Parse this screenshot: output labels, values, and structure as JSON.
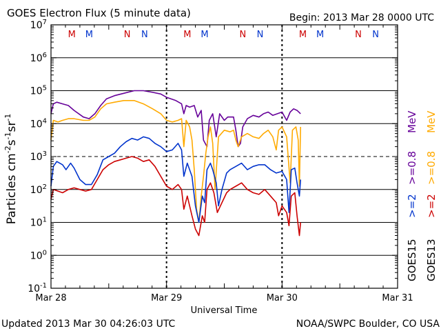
{
  "chart_data": {
    "type": "line",
    "title": "GOES Electron Flux (5 minute data)",
    "begin_label": "Begin: 2013 Mar 28 0000 UTC",
    "xlabel": "Universal Time",
    "ylabel_parts": [
      "Particles cm",
      "-2",
      "s",
      "-1",
      "sr",
      "-1"
    ],
    "updated_label": "Updated 2013 Mar 30 04:26:03 UTC",
    "credit_label": "NOAA/SWPC Boulder, CO USA",
    "x_unit": "day since Mar 28 0000 UTC",
    "xlim": [
      0,
      3
    ],
    "x_ticks": [
      {
        "value": 0,
        "label": "Mar 28"
      },
      {
        "value": 1,
        "label": "Mar 29"
      },
      {
        "value": 2,
        "label": "Mar 30"
      },
      {
        "value": 3,
        "label": "Mar 31"
      }
    ],
    "y_scale": "log",
    "ylim_exp": [
      -1,
      7
    ],
    "y_tick_labels": [
      {
        "exp": 7,
        "base": "10",
        "sup": "7"
      },
      {
        "exp": 6,
        "base": "10",
        "sup": "6"
      },
      {
        "exp": 5,
        "base": "10",
        "sup": "5"
      },
      {
        "exp": 4,
        "base": "10",
        "sup": "4"
      },
      {
        "exp": 3,
        "base": "10",
        "sup": "3"
      },
      {
        "exp": 2,
        "base": "10",
        "sup": "2"
      },
      {
        "exp": 1,
        "base": "10",
        "sup": "1"
      },
      {
        "exp": 0,
        "base": "10",
        "sup": "0"
      },
      {
        "exp": -1,
        "base": "10",
        "sup": "-1"
      }
    ],
    "solid_grid_exps": [
      6,
      5,
      4,
      2,
      1,
      0
    ],
    "dashed_grid_exps": [
      3
    ],
    "day_dashed_lines": [
      1,
      2
    ],
    "mn_markers": [
      {
        "x": 0.18,
        "label": "M",
        "color": "#cc0000"
      },
      {
        "x": 0.33,
        "label": "M",
        "color": "#0033cc"
      },
      {
        "x": 0.66,
        "label": "N",
        "color": "#cc0000"
      },
      {
        "x": 0.81,
        "label": "N",
        "color": "#0033cc"
      },
      {
        "x": 1.18,
        "label": "M",
        "color": "#cc0000"
      },
      {
        "x": 1.33,
        "label": "M",
        "color": "#0033cc"
      },
      {
        "x": 1.66,
        "label": "N",
        "color": "#cc0000"
      },
      {
        "x": 1.81,
        "label": "N",
        "color": "#0033cc"
      },
      {
        "x": 2.18,
        "label": "M",
        "color": "#cc0000"
      },
      {
        "x": 2.33,
        "label": "M",
        "color": "#0033cc"
      },
      {
        "x": 2.66,
        "label": "N",
        "color": "#cc0000"
      },
      {
        "x": 2.81,
        "label": "N",
        "color": "#0033cc"
      }
    ],
    "legend": [
      {
        "text": "GOES15",
        "color": "#000000"
      },
      {
        "text": ">=2",
        "color": "#0033cc"
      },
      {
        "text": ">=0.8",
        "color": "#660099"
      },
      {
        "text": "MeV",
        "color": "#660099"
      },
      {
        "text": "GOES13",
        "color": "#000000"
      },
      {
        "text": ">=2",
        "color": "#cc0000"
      },
      {
        "text": ">=0.8",
        "color": "#ffaa00"
      },
      {
        "text": "MeV",
        "color": "#ffaa00"
      }
    ],
    "series": [
      {
        "name": "GOES15 >=0.8 MeV",
        "color": "#660099",
        "points": [
          [
            0,
            4.3
          ],
          [
            0.02,
            4.6
          ],
          [
            0.05,
            4.65
          ],
          [
            0.1,
            4.6
          ],
          [
            0.15,
            4.55
          ],
          [
            0.2,
            4.4
          ],
          [
            0.28,
            4.2
          ],
          [
            0.33,
            4.15
          ],
          [
            0.38,
            4.3
          ],
          [
            0.43,
            4.55
          ],
          [
            0.48,
            4.75
          ],
          [
            0.55,
            4.85
          ],
          [
            0.63,
            4.92
          ],
          [
            0.72,
            5.0
          ],
          [
            0.8,
            5.0
          ],
          [
            0.88,
            4.95
          ],
          [
            0.95,
            4.9
          ],
          [
            1.0,
            4.8
          ],
          [
            1.08,
            4.7
          ],
          [
            1.13,
            4.6
          ],
          [
            1.15,
            4.3
          ],
          [
            1.17,
            4.55
          ],
          [
            1.2,
            4.5
          ],
          [
            1.24,
            4.55
          ],
          [
            1.27,
            4.2
          ],
          [
            1.3,
            4.4
          ],
          [
            1.32,
            3.5
          ],
          [
            1.35,
            3.3
          ],
          [
            1.37,
            4.1
          ],
          [
            1.4,
            4.3
          ],
          [
            1.43,
            3.6
          ],
          [
            1.46,
            4.3
          ],
          [
            1.5,
            4.1
          ],
          [
            1.53,
            4.2
          ],
          [
            1.58,
            4.2
          ],
          [
            1.6,
            3.8
          ],
          [
            1.62,
            3.3
          ],
          [
            1.64,
            3.4
          ],
          [
            1.66,
            3.9
          ],
          [
            1.7,
            4.15
          ],
          [
            1.75,
            4.25
          ],
          [
            1.8,
            4.2
          ],
          [
            1.84,
            4.3
          ],
          [
            1.88,
            4.35
          ],
          [
            1.92,
            4.25
          ],
          [
            1.96,
            4.3
          ],
          [
            2.0,
            4.35
          ],
          [
            2.04,
            4.1
          ],
          [
            2.07,
            4.35
          ],
          [
            2.1,
            4.45
          ],
          [
            2.13,
            4.4
          ],
          [
            2.16,
            4.3
          ]
        ]
      },
      {
        "name": "GOES13 >=0.8 MeV",
        "color": "#ffaa00",
        "points": [
          [
            0,
            3.5
          ],
          [
            0.02,
            4.1
          ],
          [
            0.06,
            4.05
          ],
          [
            0.1,
            4.1
          ],
          [
            0.15,
            4.15
          ],
          [
            0.2,
            4.15
          ],
          [
            0.28,
            4.1
          ],
          [
            0.33,
            4.1
          ],
          [
            0.38,
            4.2
          ],
          [
            0.43,
            4.45
          ],
          [
            0.48,
            4.6
          ],
          [
            0.55,
            4.65
          ],
          [
            0.63,
            4.7
          ],
          [
            0.72,
            4.7
          ],
          [
            0.8,
            4.6
          ],
          [
            0.88,
            4.45
          ],
          [
            0.95,
            4.3
          ],
          [
            1.0,
            4.1
          ],
          [
            1.05,
            4.05
          ],
          [
            1.1,
            4.1
          ],
          [
            1.13,
            4.15
          ],
          [
            1.15,
            3.3
          ],
          [
            1.17,
            4.1
          ],
          [
            1.2,
            3.9
          ],
          [
            1.22,
            3.5
          ],
          [
            1.24,
            2.6
          ],
          [
            1.26,
            1.4
          ],
          [
            1.28,
            1.0
          ],
          [
            1.3,
            1.8
          ],
          [
            1.32,
            2.4
          ],
          [
            1.34,
            3.1
          ],
          [
            1.36,
            3.6
          ],
          [
            1.38,
            3.9
          ],
          [
            1.4,
            3.4
          ],
          [
            1.42,
            2.0
          ],
          [
            1.45,
            3.6
          ],
          [
            1.5,
            3.8
          ],
          [
            1.55,
            3.75
          ],
          [
            1.58,
            3.8
          ],
          [
            1.6,
            3.5
          ],
          [
            1.62,
            3.3
          ],
          [
            1.65,
            3.6
          ],
          [
            1.7,
            3.7
          ],
          [
            1.75,
            3.6
          ],
          [
            1.8,
            3.55
          ],
          [
            1.84,
            3.7
          ],
          [
            1.88,
            3.8
          ],
          [
            1.92,
            3.6
          ],
          [
            1.95,
            3.2
          ],
          [
            1.97,
            3.8
          ],
          [
            2.0,
            3.9
          ],
          [
            2.04,
            3.6
          ],
          [
            2.07,
            2.2
          ],
          [
            2.09,
            3.8
          ],
          [
            2.12,
            3.9
          ],
          [
            2.14,
            3.5
          ],
          [
            2.15,
            2.1
          ],
          [
            2.16,
            3.9
          ]
        ]
      },
      {
        "name": "GOES15 >=2 MeV",
        "color": "#0033cc",
        "points": [
          [
            0,
            2.1
          ],
          [
            0.02,
            2.7
          ],
          [
            0.05,
            2.85
          ],
          [
            0.1,
            2.75
          ],
          [
            0.13,
            2.6
          ],
          [
            0.17,
            2.8
          ],
          [
            0.2,
            2.65
          ],
          [
            0.25,
            2.3
          ],
          [
            0.3,
            2.15
          ],
          [
            0.35,
            2.15
          ],
          [
            0.4,
            2.45
          ],
          [
            0.45,
            2.9
          ],
          [
            0.5,
            3.0
          ],
          [
            0.55,
            3.1
          ],
          [
            0.6,
            3.3
          ],
          [
            0.65,
            3.45
          ],
          [
            0.7,
            3.55
          ],
          [
            0.75,
            3.5
          ],
          [
            0.8,
            3.6
          ],
          [
            0.85,
            3.55
          ],
          [
            0.9,
            3.4
          ],
          [
            0.95,
            3.3
          ],
          [
            1.0,
            3.15
          ],
          [
            1.05,
            3.2
          ],
          [
            1.1,
            3.4
          ],
          [
            1.13,
            3.2
          ],
          [
            1.15,
            2.4
          ],
          [
            1.18,
            2.8
          ],
          [
            1.22,
            2.4
          ],
          [
            1.25,
            1.5
          ],
          [
            1.28,
            1.0
          ],
          [
            1.31,
            1.8
          ],
          [
            1.33,
            1.6
          ],
          [
            1.35,
            2.6
          ],
          [
            1.38,
            2.8
          ],
          [
            1.4,
            2.6
          ],
          [
            1.43,
            2.2
          ],
          [
            1.45,
            1.5
          ],
          [
            1.48,
            2.0
          ],
          [
            1.52,
            2.5
          ],
          [
            1.55,
            2.6
          ],
          [
            1.6,
            2.7
          ],
          [
            1.65,
            2.8
          ],
          [
            1.7,
            2.6
          ],
          [
            1.75,
            2.7
          ],
          [
            1.8,
            2.75
          ],
          [
            1.85,
            2.75
          ],
          [
            1.9,
            2.6
          ],
          [
            1.95,
            2.5
          ],
          [
            2.0,
            2.55
          ],
          [
            2.04,
            2.3
          ],
          [
            2.06,
            1.3
          ],
          [
            2.08,
            2.6
          ],
          [
            2.11,
            2.65
          ],
          [
            2.13,
            2.2
          ],
          [
            2.15,
            1.8
          ],
          [
            2.16,
            2.3
          ]
        ]
      },
      {
        "name": "GOES13 >=2 MeV",
        "color": "#cc0000",
        "points": [
          [
            0,
            1.7
          ],
          [
            0.02,
            2.0
          ],
          [
            0.06,
            1.95
          ],
          [
            0.1,
            1.9
          ],
          [
            0.15,
            2.0
          ],
          [
            0.2,
            2.05
          ],
          [
            0.25,
            2.0
          ],
          [
            0.3,
            1.95
          ],
          [
            0.35,
            2.0
          ],
          [
            0.4,
            2.3
          ],
          [
            0.45,
            2.6
          ],
          [
            0.5,
            2.75
          ],
          [
            0.55,
            2.85
          ],
          [
            0.6,
            2.9
          ],
          [
            0.65,
            2.95
          ],
          [
            0.7,
            3.0
          ],
          [
            0.75,
            2.95
          ],
          [
            0.8,
            2.85
          ],
          [
            0.85,
            2.9
          ],
          [
            0.9,
            2.7
          ],
          [
            0.95,
            2.4
          ],
          [
            1.0,
            2.1
          ],
          [
            1.05,
            2.0
          ],
          [
            1.1,
            2.15
          ],
          [
            1.13,
            2.0
          ],
          [
            1.15,
            1.4
          ],
          [
            1.18,
            1.8
          ],
          [
            1.22,
            1.2
          ],
          [
            1.25,
            0.8
          ],
          [
            1.28,
            0.6
          ],
          [
            1.31,
            1.2
          ],
          [
            1.33,
            1.0
          ],
          [
            1.35,
            2.0
          ],
          [
            1.38,
            2.2
          ],
          [
            1.41,
            1.9
          ],
          [
            1.44,
            1.3
          ],
          [
            1.48,
            1.6
          ],
          [
            1.52,
            1.9
          ],
          [
            1.55,
            2.0
          ],
          [
            1.6,
            2.1
          ],
          [
            1.65,
            2.2
          ],
          [
            1.7,
            2.0
          ],
          [
            1.75,
            1.9
          ],
          [
            1.8,
            1.85
          ],
          [
            1.85,
            2.0
          ],
          [
            1.9,
            1.8
          ],
          [
            1.95,
            1.6
          ],
          [
            1.97,
            1.2
          ],
          [
            2.0,
            1.5
          ],
          [
            2.04,
            1.3
          ],
          [
            2.06,
            0.9
          ],
          [
            2.08,
            1.8
          ],
          [
            2.11,
            1.9
          ],
          [
            2.13,
            1.2
          ],
          [
            2.15,
            0.6
          ],
          [
            2.16,
            1.0
          ]
        ]
      }
    ]
  }
}
